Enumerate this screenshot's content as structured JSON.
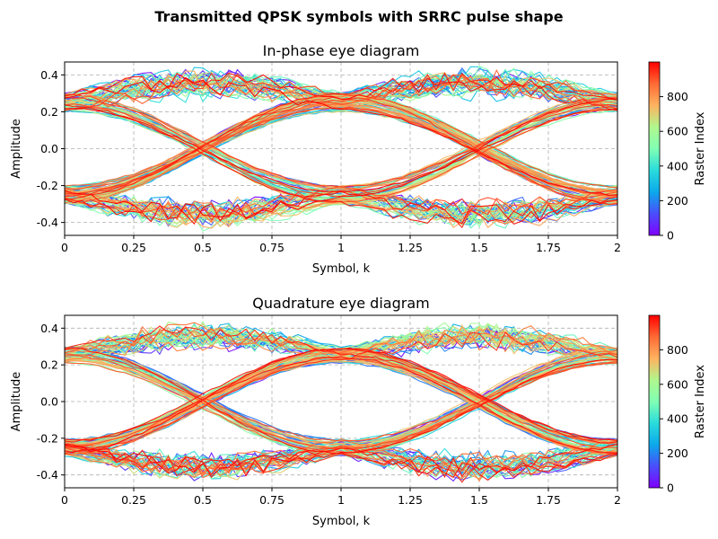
{
  "figure": {
    "title": "Transmitted QPSK symbols with SRRC pulse shape"
  },
  "chart_data": [
    {
      "type": "line",
      "title": "In-phase eye diagram",
      "xlabel": "Symbol, k",
      "ylabel": "Amplitude",
      "xlim": [
        0,
        2
      ],
      "ylim": [
        -0.47,
        0.47
      ],
      "x_ticks": [
        0,
        0.25,
        0.5,
        0.75,
        1,
        1.25,
        1.5,
        1.75,
        2
      ],
      "x_tick_labels": [
        "0",
        "0.25",
        "0.5",
        "0.75",
        "1",
        "1.25",
        "1.5",
        "1.75",
        "2"
      ],
      "y_ticks": [
        -0.4,
        -0.2,
        0,
        0.2,
        0.4
      ],
      "y_tick_labels": [
        "-0.4",
        "-0.2",
        "0.0",
        "0.2",
        "0.4"
      ],
      "grid": true,
      "eye_levels": [
        0.25,
        -0.25
      ],
      "eye_spread": 0.09,
      "max_excursion": 0.45,
      "traces_described": "overlaid symbol-period traces, colored by raster index 0-1000",
      "colorbar": {
        "label": "Raster Index",
        "range": [
          0,
          1000
        ],
        "ticks": [
          0,
          200,
          400,
          600,
          800
        ],
        "colormap": "rainbow"
      },
      "seed": 11
    },
    {
      "type": "line",
      "title": "Quadrature eye diagram",
      "xlabel": "Symbol, k",
      "ylabel": "Amplitude",
      "xlim": [
        0,
        2
      ],
      "ylim": [
        -0.47,
        0.47
      ],
      "x_ticks": [
        0,
        0.25,
        0.5,
        0.75,
        1,
        1.25,
        1.5,
        1.75,
        2
      ],
      "x_tick_labels": [
        "0",
        "0.25",
        "0.5",
        "0.75",
        "1",
        "1.25",
        "1.5",
        "1.75",
        "2"
      ],
      "y_ticks": [
        -0.4,
        -0.2,
        0,
        0.2,
        0.4
      ],
      "y_tick_labels": [
        "-0.4",
        "-0.2",
        "0.0",
        "0.2",
        "0.4"
      ],
      "grid": true,
      "eye_levels": [
        0.25,
        -0.25
      ],
      "eye_spread": 0.08,
      "max_excursion": 0.46,
      "traces_described": "overlaid symbol-period traces, colored by raster index 0-1000",
      "colorbar": {
        "label": "Raster Index",
        "range": [
          0,
          1000
        ],
        "ticks": [
          0,
          200,
          400,
          600,
          800
        ],
        "colormap": "rainbow"
      },
      "seed": 29
    }
  ]
}
